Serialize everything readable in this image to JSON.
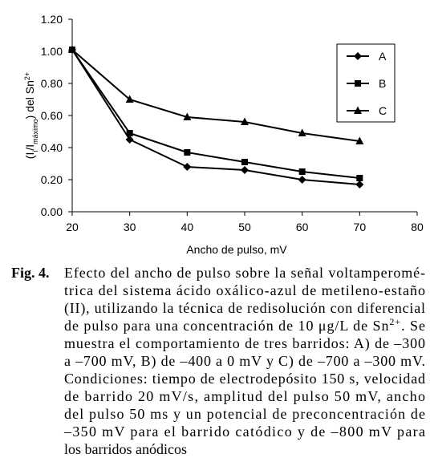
{
  "chart_data": {
    "type": "line",
    "ylabel_parts": [
      {
        "text": "(I"
      },
      {
        "text": "i",
        "style": "sub"
      },
      {
        "text": "/I"
      },
      {
        "text": "máximo",
        "style": "sub"
      },
      {
        "text": ") del Sn"
      },
      {
        "text": "2+",
        "style": "sup"
      }
    ],
    "xlabel": "Ancho de pulso, mV",
    "x": [
      20,
      30,
      40,
      50,
      60,
      70
    ],
    "series": [
      {
        "name": "A",
        "color": "#000000",
        "marker": "diamond",
        "values": [
          1.01,
          0.45,
          0.28,
          0.26,
          0.2,
          0.17
        ]
      },
      {
        "name": "B",
        "color": "#000000",
        "marker": "square",
        "values": [
          1.01,
          0.49,
          0.37,
          0.31,
          0.25,
          0.21
        ]
      },
      {
        "name": "C",
        "color": "#000000",
        "marker": "triangle",
        "values": [
          1.01,
          0.7,
          0.59,
          0.56,
          0.49,
          0.44
        ]
      }
    ],
    "xlim": [
      20,
      80
    ],
    "xticks": [
      20,
      30,
      40,
      50,
      60,
      70,
      80
    ],
    "ylim": [
      0,
      1.2
    ],
    "yticks": [
      {
        "value": 0,
        "label": "0.00"
      },
      {
        "value": 0.2,
        "label": "0.20"
      },
      {
        "value": 0.4,
        "label": "0.40"
      },
      {
        "value": 0.6,
        "label": "0.60"
      },
      {
        "value": 0.8,
        "label": "0.80"
      },
      {
        "value": 1.0,
        "label": "1.00"
      },
      {
        "value": 1.2,
        "label": "1.20"
      }
    ],
    "grid": false,
    "legend": "upper right"
  },
  "caption": {
    "label": "Fig. 4.",
    "lines": [
      [
        {
          "text": "Efecto del ancho de pulso sobre la señal voltamperomé-"
        }
      ],
      [
        {
          "text": "trica del sistema ácido oxálico-azul de metileno-estaño"
        }
      ],
      [
        {
          "text": "(II), utilizando la técnica de redisolución con diferencial"
        }
      ],
      [
        {
          "text": "de pulso para una concentración de 10 μg/L de Sn"
        },
        {
          "text": "2+",
          "style": "sup"
        },
        {
          "text": ". Se"
        }
      ],
      [
        {
          "text": "muestra el comportamiento de tres barridos: A) de –300"
        }
      ],
      [
        {
          "text": "a –700 mV, B) de –400 a 0 mV y C) de –700 a –300 mV."
        }
      ],
      [
        {
          "text": "Condiciones: tiempo de electrodepósito 150 s, velocidad"
        }
      ],
      [
        {
          "text": "de barrido 20 mV/s, amplitud del pulso 50 mV, ancho"
        }
      ],
      [
        {
          "text": "del pulso 50 ms y un potencial de preconcentración de"
        }
      ],
      [
        {
          "text": "–350 mV para el barrido catódico y de –800 mV para"
        }
      ],
      [
        {
          "text": "los barridos anódicos"
        }
      ]
    ]
  }
}
